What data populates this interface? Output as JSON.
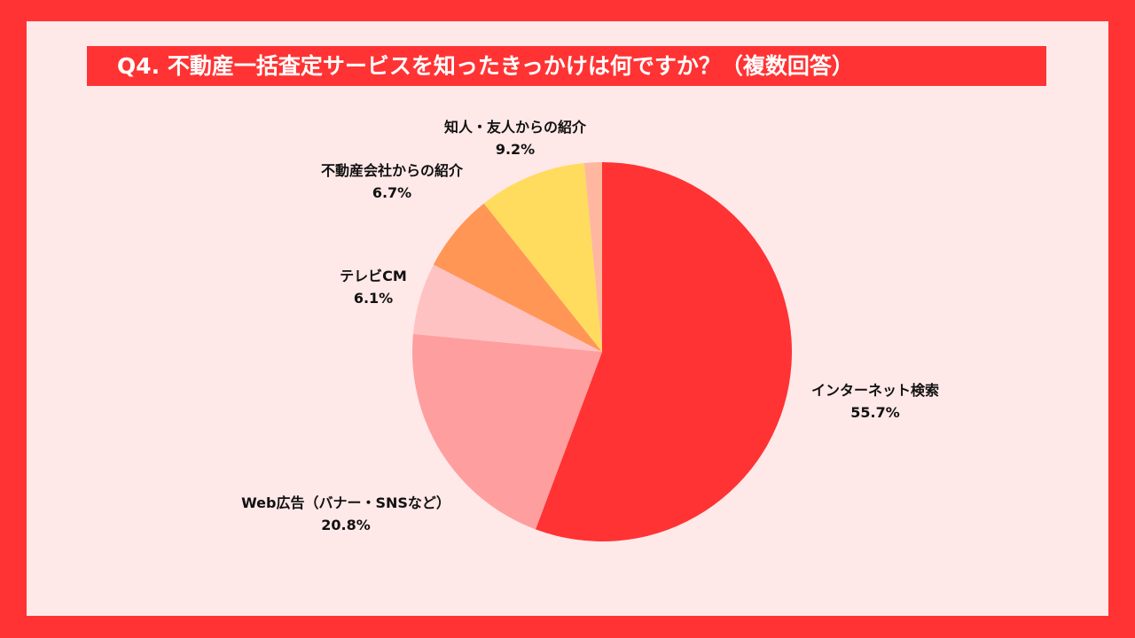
{
  "title": "Q4. 不動産一括査定サービスを知ったきっかけは何ですか？（複数回答）",
  "colors": {
    "background": "#ff3333",
    "panel": "#ffe8e8",
    "title_bar": "#ff3333"
  },
  "chart_data": {
    "type": "pie",
    "unit": "%",
    "slices": [
      {
        "label": "インターネット検索",
        "value": 55.7,
        "display": "55.7%",
        "color": "#ff3333"
      },
      {
        "label": "Web広告（バナー・SNSなど）",
        "value": 20.8,
        "display": "20.8%",
        "color": "#ff9e9e"
      },
      {
        "label": "テレビCM",
        "value": 6.1,
        "display": "6.1%",
        "color": "#ffc2c2"
      },
      {
        "label": "不動産会社からの紹介",
        "value": 6.7,
        "display": "6.7%",
        "color": "#ff9656"
      },
      {
        "label": "知人・友人からの紹介",
        "value": 9.2,
        "display": "9.2%",
        "color": "#ffdc5e"
      },
      {
        "label": "",
        "value": 1.5,
        "display": "",
        "color": "#ffb7a0"
      }
    ]
  }
}
